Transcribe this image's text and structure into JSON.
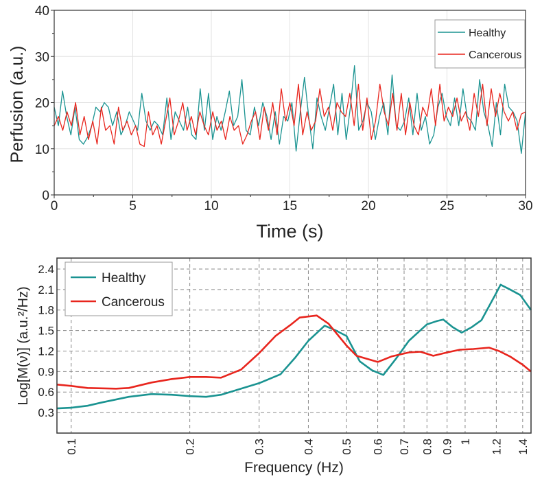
{
  "colors": {
    "healthy": "#1a9391",
    "cancerous": "#e8251d",
    "grid_top": "#e2e2e2",
    "grid_bottom": "#8a8a8a"
  },
  "chart_data": [
    {
      "type": "line",
      "xlabel": "Time (s)",
      "ylabel": "Perfusion (a.u.)",
      "xlim": [
        0,
        30
      ],
      "ylim": [
        0,
        40
      ],
      "xticks": [
        "0",
        "5",
        "10",
        "15",
        "20",
        "25",
        "30"
      ],
      "yticks": [
        "0",
        "10",
        "20",
        "30",
        "40"
      ],
      "grid": true,
      "legend_position": "top-right",
      "x_range_evenly_spaced": [
        0,
        30
      ],
      "series": [
        {
          "name": "Healthy",
          "values": [
            19,
            15,
            22.5,
            17,
            13,
            19,
            12,
            11,
            12.5,
            15,
            19,
            18,
            20,
            19,
            15,
            18,
            13,
            15,
            18,
            16,
            14,
            22,
            16,
            14,
            16,
            15,
            13,
            21,
            12,
            18,
            16,
            14,
            19,
            13,
            12,
            23,
            14,
            22,
            12,
            17,
            14,
            18,
            22.5,
            15,
            17,
            25,
            14,
            13,
            19,
            15,
            20,
            17,
            12,
            18,
            11,
            17,
            16,
            20,
            9.5,
            18,
            25.5,
            17,
            10,
            21,
            17,
            14,
            19,
            24,
            13,
            22,
            12,
            19,
            28,
            14,
            16,
            20,
            18,
            12,
            17,
            20,
            13,
            26,
            15,
            14,
            16,
            21,
            13,
            22,
            14,
            17,
            11,
            13,
            19,
            22,
            17,
            15,
            21,
            15,
            23,
            17,
            16,
            14,
            25,
            18,
            15,
            10.5,
            20,
            13,
            24,
            19,
            18,
            16,
            9,
            18
          ]
        },
        {
          "name": "Cancerous",
          "values": [
            15,
            17,
            14,
            18,
            15,
            20,
            13,
            17,
            12,
            16,
            11,
            19,
            14,
            15,
            11,
            19,
            14,
            16,
            13,
            15,
            11,
            10.5,
            18,
            13,
            15,
            11,
            16,
            21,
            13,
            16,
            20,
            14,
            17,
            13,
            18,
            15,
            13,
            18,
            14,
            16,
            12,
            17,
            14,
            15,
            11,
            13,
            16,
            18,
            12,
            19,
            14,
            20,
            13,
            23,
            16,
            20,
            15,
            24,
            13,
            18,
            14,
            16,
            23,
            17,
            19,
            14,
            20,
            18,
            17,
            22,
            15,
            24,
            14,
            21,
            12,
            16,
            24,
            18,
            15,
            22,
            14,
            22,
            13,
            20,
            15,
            13,
            19,
            17,
            23,
            15,
            24,
            16,
            19,
            17,
            21,
            16,
            18,
            14,
            22,
            17,
            24,
            15,
            23,
            17,
            22,
            18,
            16,
            18,
            14,
            17.5,
            18
          ]
        }
      ]
    },
    {
      "type": "line",
      "xlabel": "Frequency (Hz)",
      "ylabel": "Log[M(ν)] (a.u.²/Hz)",
      "xscale": "log",
      "xlim": [
        0.092,
        1.47
      ],
      "ylim": [
        0.0,
        2.56
      ],
      "xticks": [
        "0.1",
        "0.2",
        "0.3",
        "0.4",
        "0.5",
        "0.6",
        "0.7",
        "0.8",
        "0.9",
        "1",
        "1.2",
        "1.4"
      ],
      "yticks": [
        "0.3",
        "0.6",
        "0.9",
        "1.2",
        "1.5",
        "1.8",
        "2.1",
        "2.4"
      ],
      "grid": true,
      "legend_position": "top-left",
      "series": [
        {
          "name": "Healthy",
          "x": [
            0.092,
            0.1,
            0.11,
            0.12,
            0.14,
            0.16,
            0.18,
            0.2,
            0.22,
            0.24,
            0.27,
            0.3,
            0.34,
            0.37,
            0.4,
            0.44,
            0.47,
            0.5,
            0.54,
            0.58,
            0.62,
            0.67,
            0.72,
            0.8,
            0.85,
            0.88,
            0.93,
            0.98,
            1.04,
            1.1,
            1.2,
            1.23,
            1.3,
            1.38,
            1.47
          ],
          "y": [
            0.36,
            0.37,
            0.4,
            0.45,
            0.53,
            0.57,
            0.56,
            0.54,
            0.53,
            0.56,
            0.65,
            0.73,
            0.86,
            1.1,
            1.35,
            1.57,
            1.5,
            1.42,
            1.05,
            0.92,
            0.85,
            1.1,
            1.35,
            1.59,
            1.64,
            1.66,
            1.55,
            1.47,
            1.55,
            1.65,
            2.05,
            2.17,
            2.1,
            2.02,
            1.8
          ]
        },
        {
          "name": "Cancerous",
          "x": [
            0.092,
            0.1,
            0.11,
            0.13,
            0.14,
            0.16,
            0.18,
            0.2,
            0.22,
            0.24,
            0.27,
            0.3,
            0.33,
            0.36,
            0.38,
            0.42,
            0.45,
            0.5,
            0.53,
            0.6,
            0.65,
            0.72,
            0.77,
            0.83,
            0.9,
            0.97,
            1.05,
            1.15,
            1.22,
            1.3,
            1.4,
            1.47
          ],
          "y": [
            0.71,
            0.69,
            0.66,
            0.65,
            0.66,
            0.74,
            0.79,
            0.82,
            0.82,
            0.81,
            0.93,
            1.17,
            1.42,
            1.58,
            1.69,
            1.72,
            1.6,
            1.28,
            1.13,
            1.04,
            1.12,
            1.18,
            1.19,
            1.13,
            1.18,
            1.22,
            1.23,
            1.25,
            1.2,
            1.12,
            1.0,
            0.9
          ]
        }
      ]
    }
  ]
}
